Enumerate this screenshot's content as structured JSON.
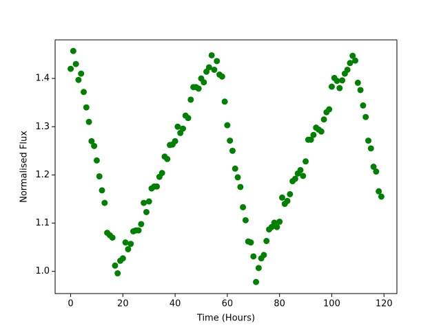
{
  "chart_data": {
    "type": "scatter",
    "xlabel": "Time (Hours)",
    "ylabel": "Normalised Flux",
    "color": "#008000",
    "x": [
      0,
      1,
      2,
      3,
      4,
      5,
      6,
      7,
      8,
      9,
      10,
      11,
      12,
      13,
      14,
      15,
      16,
      17,
      18,
      19,
      20,
      21,
      22,
      23,
      24,
      25,
      26,
      27,
      28,
      29,
      30,
      31,
      32,
      33,
      34,
      35,
      36,
      37,
      38,
      39,
      40,
      41,
      42,
      43,
      44,
      45,
      46,
      47,
      48,
      49,
      50,
      51,
      52,
      53,
      54,
      55,
      56,
      57,
      58,
      59,
      60,
      61,
      62,
      63,
      64,
      65,
      66,
      67,
      68,
      69,
      70,
      71,
      72,
      73,
      74,
      75,
      76,
      77,
      78,
      79,
      80,
      81,
      82,
      83,
      84,
      85,
      86,
      87,
      88,
      89,
      90,
      91,
      92,
      93,
      94,
      95,
      96,
      97,
      98,
      99,
      100,
      101,
      102,
      103,
      104,
      105,
      106,
      107,
      108,
      109,
      110,
      111,
      112,
      113,
      114,
      115,
      116,
      117,
      118,
      119
    ],
    "values": [
      1.42,
      1.457,
      1.43,
      1.397,
      1.41,
      1.372,
      1.34,
      1.31,
      1.27,
      1.26,
      1.23,
      1.197,
      1.168,
      1.142,
      1.08,
      1.075,
      1.07,
      1.012,
      0.996,
      1.022,
      1.027,
      1.06,
      1.046,
      1.057,
      1.083,
      1.085,
      1.085,
      1.098,
      1.142,
      1.123,
      1.145,
      1.172,
      1.176,
      1.176,
      1.196,
      1.204,
      1.238,
      1.233,
      1.262,
      1.263,
      1.27,
      1.3,
      1.287,
      1.296,
      1.323,
      1.318,
      1.356,
      1.382,
      1.382,
      1.379,
      1.4,
      1.392,
      1.414,
      1.423,
      1.448,
      1.418,
      1.436,
      1.408,
      1.404,
      1.352,
      1.303,
      1.271,
      1.25,
      1.213,
      1.195,
      1.175,
      1.133,
      1.106,
      1.062,
      1.06,
      1.031,
      0.978,
      1.007,
      1.027,
      1.034,
      1.063,
      1.087,
      1.092,
      1.101,
      1.092,
      1.103,
      1.153,
      1.14,
      1.146,
      1.16,
      1.187,
      1.192,
      1.203,
      1.21,
      1.198,
      1.228,
      1.273,
      1.273,
      1.283,
      1.298,
      1.294,
      1.29,
      1.315,
      1.33,
      1.336,
      1.383,
      1.401,
      1.395,
      1.38,
      1.396,
      1.41,
      1.418,
      1.432,
      1.447,
      1.437,
      1.391,
      1.376,
      1.344,
      1.32,
      1.271,
      1.255,
      1.217,
      1.207,
      1.166,
      1.155
    ],
    "xlim": [
      -5.95,
      124.95
    ],
    "xticks": [
      0,
      20,
      40,
      60,
      80,
      100,
      120
    ],
    "ylim": [
      0.954,
      1.48
    ],
    "yticks": [
      {
        "value": 1,
        "label": "1.0"
      },
      1.1,
      1.2,
      1.3,
      1.4
    ]
  }
}
